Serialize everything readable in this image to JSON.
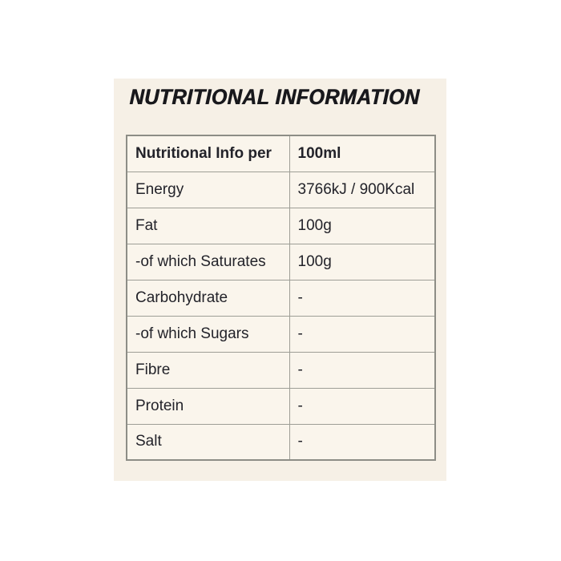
{
  "title": "NUTRITIONAL INFORMATION",
  "table": {
    "header": {
      "label": "Nutritional Info per",
      "value": "100ml"
    },
    "rows": [
      {
        "label": "Energy",
        "value": "3766kJ / 900Kcal"
      },
      {
        "label": "Fat",
        "value": "100g"
      },
      {
        "label": "-of which Saturates",
        "value": "100g"
      },
      {
        "label": "Carbohydrate",
        "value": "-"
      },
      {
        "label": "-of which Sugars",
        "value": "-"
      },
      {
        "label": "Fibre",
        "value": "-"
      },
      {
        "label": "Protein",
        "value": "-"
      },
      {
        "label": "Salt",
        "value": "-"
      }
    ]
  },
  "colors": {
    "page_background": "#ffffff",
    "panel_background": "#f6f0e6",
    "cell_background": "#faf5ec",
    "border": "#8e8e88",
    "text": "#23232a",
    "title_text": "#18181c"
  }
}
